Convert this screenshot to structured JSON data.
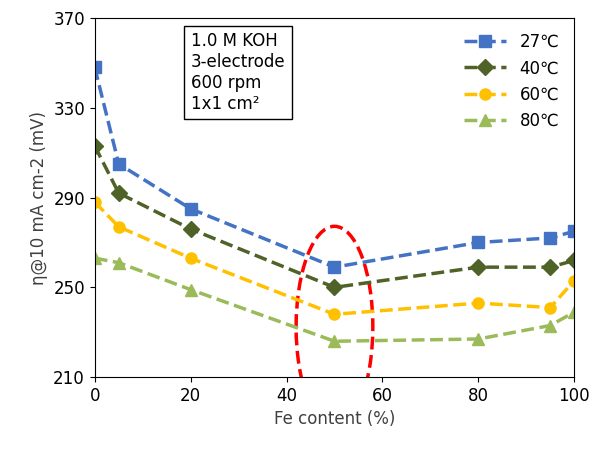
{
  "chart_data": {
    "type": "line",
    "x_label": "Fe content (%)",
    "y_label": "η@10 mA cm-2 (mV)",
    "annotations": [
      "1.0 M KOH",
      "3-electrode",
      "600 rpm",
      "1x1 cm²"
    ],
    "x": [
      0,
      5,
      20,
      50,
      80,
      95,
      100
    ],
    "series": [
      {
        "name": "27℃",
        "color": "#4472c4",
        "marker": "square",
        "line_style": "dashed",
        "values": [
          348,
          305,
          285,
          259,
          270,
          272,
          275
        ]
      },
      {
        "name": "40℃",
        "color": "#4f6228",
        "marker": "diamond",
        "line_style": "dashed",
        "values": [
          313,
          292,
          276,
          250,
          259,
          259,
          262
        ]
      },
      {
        "name": "60℃",
        "color": "#ffc000",
        "marker": "circle",
        "line_style": "dashed",
        "values": [
          288,
          277,
          263,
          238,
          243,
          241,
          253
        ]
      },
      {
        "name": "80℃",
        "color": "#9bbb59",
        "marker": "triangle",
        "line_style": "dashed",
        "values": [
          263,
          261,
          249,
          226,
          227,
          233,
          239
        ]
      }
    ],
    "xlim": [
      0,
      100
    ],
    "xticks": [
      0,
      20,
      40,
      60,
      80,
      100
    ],
    "ylim": [
      210,
      370
    ],
    "yticks": [
      210,
      250,
      290,
      330,
      370
    ],
    "grid": false,
    "legend": "upper right"
  }
}
